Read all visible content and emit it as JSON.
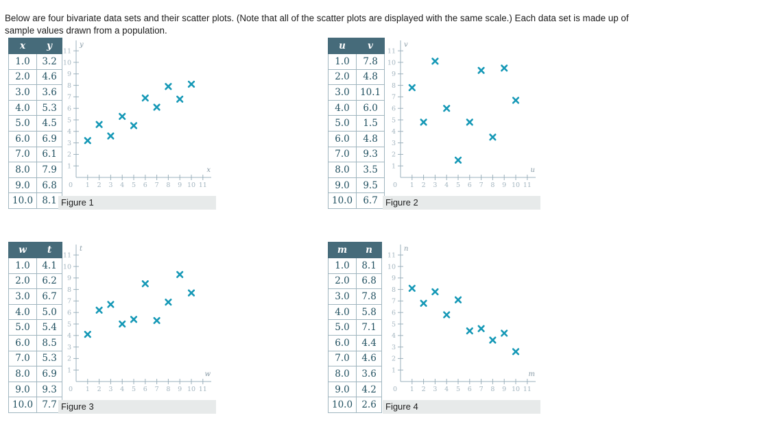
{
  "page": {
    "intro_line1": "Below are four bivariate data sets and their scatter plots. (Note that all of the scatter plots are displayed with the same scale.) Each data set is made up of",
    "intro_line2": "sample values drawn from a population."
  },
  "colors": {
    "marker": "#1598b6",
    "axis": "#9bb0bc",
    "tick_label": "#a2b4bf",
    "axis_letter": "#8699a5",
    "table_header_bg": "#466b7a",
    "table_cell_text": "#1f4f5f",
    "caption_bg": "#e7eaea"
  },
  "datasets": [
    {
      "figure_label": "Figure 1",
      "columns": [
        "x",
        "y"
      ],
      "rows": [
        [
          "1.0",
          "3.2"
        ],
        [
          "2.0",
          "4.6"
        ],
        [
          "3.0",
          "3.6"
        ],
        [
          "4.0",
          "5.3"
        ],
        [
          "5.0",
          "4.5"
        ],
        [
          "6.0",
          "6.9"
        ],
        [
          "7.0",
          "6.1"
        ],
        [
          "8.0",
          "7.9"
        ],
        [
          "9.0",
          "6.8"
        ],
        [
          "10.0",
          "8.1"
        ]
      ]
    },
    {
      "figure_label": "Figure 2",
      "columns": [
        "u",
        "v"
      ],
      "rows": [
        [
          "1.0",
          "7.8"
        ],
        [
          "2.0",
          "4.8"
        ],
        [
          "3.0",
          "10.1"
        ],
        [
          "4.0",
          "6.0"
        ],
        [
          "5.0",
          "1.5"
        ],
        [
          "6.0",
          "4.8"
        ],
        [
          "7.0",
          "9.3"
        ],
        [
          "8.0",
          "3.5"
        ],
        [
          "9.0",
          "9.5"
        ],
        [
          "10.0",
          "6.7"
        ]
      ]
    },
    {
      "figure_label": "Figure 3",
      "columns": [
        "w",
        "t"
      ],
      "rows": [
        [
          "1.0",
          "4.1"
        ],
        [
          "2.0",
          "6.2"
        ],
        [
          "3.0",
          "6.7"
        ],
        [
          "4.0",
          "5.0"
        ],
        [
          "5.0",
          "5.4"
        ],
        [
          "6.0",
          "8.5"
        ],
        [
          "7.0",
          "5.3"
        ],
        [
          "8.0",
          "6.9"
        ],
        [
          "9.0",
          "9.3"
        ],
        [
          "10.0",
          "7.7"
        ]
      ]
    },
    {
      "figure_label": "Figure 4",
      "columns": [
        "m",
        "n"
      ],
      "rows": [
        [
          "1.0",
          "8.1"
        ],
        [
          "2.0",
          "6.8"
        ],
        [
          "3.0",
          "7.8"
        ],
        [
          "4.0",
          "5.8"
        ],
        [
          "5.0",
          "7.1"
        ],
        [
          "6.0",
          "4.4"
        ],
        [
          "7.0",
          "4.6"
        ],
        [
          "8.0",
          "3.6"
        ],
        [
          "9.0",
          "4.2"
        ],
        [
          "10.0",
          "2.6"
        ]
      ]
    }
  ],
  "chart_data": [
    {
      "type": "scatter",
      "title": "Figure 1",
      "xlabel": "x",
      "ylabel": "y",
      "x": [
        1,
        2,
        3,
        4,
        5,
        6,
        7,
        8,
        9,
        10
      ],
      "y": [
        3.2,
        4.6,
        3.6,
        5.3,
        4.5,
        6.9,
        6.1,
        7.9,
        6.8,
        8.1
      ],
      "xlim": [
        0,
        11.5
      ],
      "ylim": [
        0,
        11.5
      ],
      "xticks": [
        1,
        2,
        3,
        4,
        5,
        6,
        7,
        8,
        9,
        10,
        11
      ],
      "yticks": [
        1,
        2,
        3,
        4,
        5,
        6,
        7,
        8,
        9,
        10,
        11
      ],
      "origin_label": "0",
      "marker": "x",
      "grid": false,
      "legend": null
    },
    {
      "type": "scatter",
      "title": "Figure 2",
      "xlabel": "u",
      "ylabel": "v",
      "x": [
        1,
        2,
        3,
        4,
        5,
        6,
        7,
        8,
        9,
        10
      ],
      "y": [
        7.8,
        4.8,
        10.1,
        6.0,
        1.5,
        4.8,
        9.3,
        3.5,
        9.5,
        6.7
      ],
      "xlim": [
        0,
        11.5
      ],
      "ylim": [
        0,
        11.5
      ],
      "xticks": [
        1,
        2,
        3,
        4,
        5,
        6,
        7,
        8,
        9,
        10,
        11
      ],
      "yticks": [
        1,
        2,
        3,
        4,
        5,
        6,
        7,
        8,
        9,
        10,
        11
      ],
      "origin_label": "0",
      "marker": "x",
      "grid": false,
      "legend": null
    },
    {
      "type": "scatter",
      "title": "Figure 3",
      "xlabel": "w",
      "ylabel": "t",
      "x": [
        1,
        2,
        3,
        4,
        5,
        6,
        7,
        8,
        9,
        10
      ],
      "y": [
        4.1,
        6.2,
        6.7,
        5.0,
        5.4,
        8.5,
        5.3,
        6.9,
        9.3,
        7.7
      ],
      "xlim": [
        0,
        11.5
      ],
      "ylim": [
        0,
        11.5
      ],
      "xticks": [
        1,
        2,
        3,
        4,
        5,
        6,
        7,
        8,
        9,
        10,
        11
      ],
      "yticks": [
        1,
        2,
        3,
        4,
        5,
        6,
        7,
        8,
        9,
        10,
        11
      ],
      "origin_label": "0",
      "marker": "x",
      "grid": false,
      "legend": null
    },
    {
      "type": "scatter",
      "title": "Figure 4",
      "xlabel": "m",
      "ylabel": "n",
      "x": [
        1,
        2,
        3,
        4,
        5,
        6,
        7,
        8,
        9,
        10
      ],
      "y": [
        8.1,
        6.8,
        7.8,
        5.8,
        7.1,
        4.4,
        4.6,
        3.6,
        4.2,
        2.6
      ],
      "xlim": [
        0,
        11.5
      ],
      "ylim": [
        0,
        11.5
      ],
      "xticks": [
        1,
        2,
        3,
        4,
        5,
        6,
        7,
        8,
        9,
        10,
        11
      ],
      "yticks": [
        1,
        2,
        3,
        4,
        5,
        6,
        7,
        8,
        9,
        10,
        11
      ],
      "origin_label": "0",
      "marker": "x",
      "grid": false,
      "legend": null
    }
  ]
}
